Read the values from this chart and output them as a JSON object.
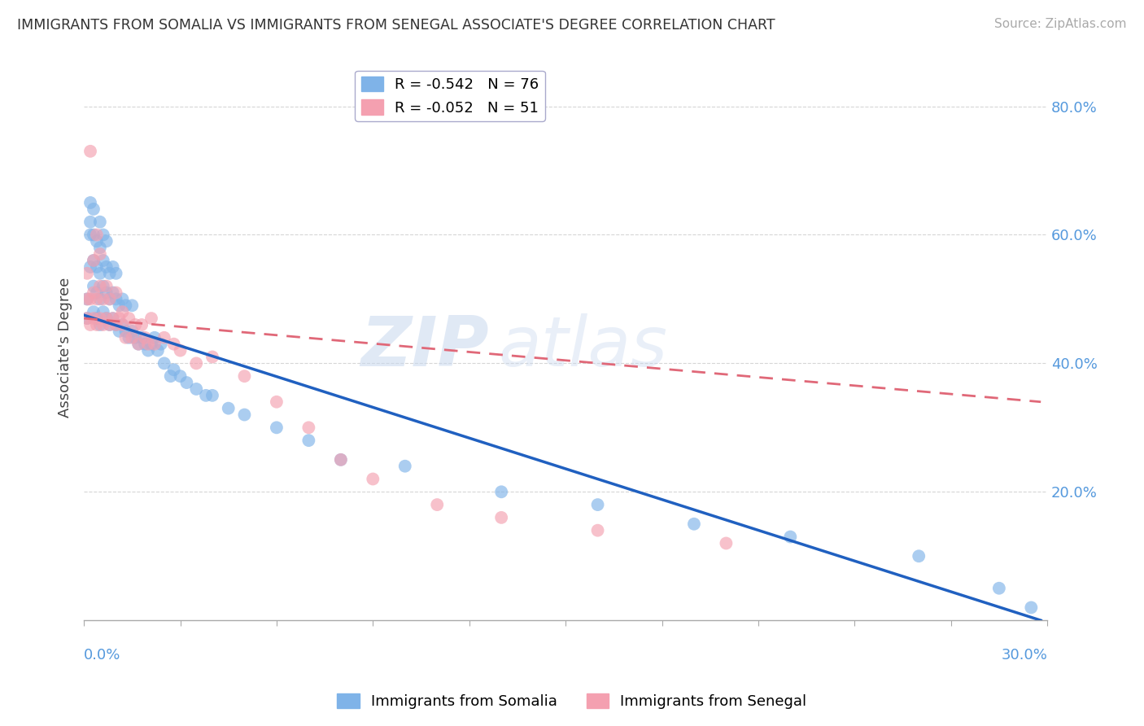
{
  "title": "IMMIGRANTS FROM SOMALIA VS IMMIGRANTS FROM SENEGAL ASSOCIATE'S DEGREE CORRELATION CHART",
  "source": "Source: ZipAtlas.com",
  "ylabel": "Associate's Degree",
  "xlim": [
    0.0,
    0.3
  ],
  "ylim": [
    0.0,
    0.85
  ],
  "ytick_vals": [
    0.2,
    0.4,
    0.6,
    0.8
  ],
  "ytick_labels": [
    "20.0%",
    "40.0%",
    "60.0%",
    "80.0%"
  ],
  "legend_somalia": "R = -0.542   N = 76",
  "legend_senegal": "R = -0.052   N = 51",
  "color_somalia": "#7fb3e8",
  "color_senegal": "#f4a0b0",
  "trendline_somalia_color": "#2060c0",
  "trendline_senegal_color": "#e06878",
  "watermark_zip": "ZIP",
  "watermark_atlas": "atlas",
  "somalia_trendline_x": [
    0.0,
    0.298
  ],
  "somalia_trendline_y": [
    0.475,
    0.0
  ],
  "senegal_trendline_x": [
    0.0,
    0.298
  ],
  "senegal_trendline_y": [
    0.47,
    0.34
  ],
  "somalia_x": [
    0.001,
    0.001,
    0.002,
    0.002,
    0.002,
    0.002,
    0.003,
    0.003,
    0.003,
    0.003,
    0.003,
    0.004,
    0.004,
    0.004,
    0.004,
    0.005,
    0.005,
    0.005,
    0.005,
    0.005,
    0.006,
    0.006,
    0.006,
    0.006,
    0.007,
    0.007,
    0.007,
    0.007,
    0.008,
    0.008,
    0.008,
    0.009,
    0.009,
    0.009,
    0.01,
    0.01,
    0.01,
    0.011,
    0.011,
    0.012,
    0.012,
    0.013,
    0.013,
    0.014,
    0.015,
    0.015,
    0.016,
    0.017,
    0.018,
    0.019,
    0.02,
    0.021,
    0.022,
    0.023,
    0.024,
    0.025,
    0.027,
    0.028,
    0.03,
    0.032,
    0.035,
    0.038,
    0.04,
    0.045,
    0.05,
    0.06,
    0.07,
    0.08,
    0.1,
    0.13,
    0.16,
    0.19,
    0.22,
    0.26,
    0.285,
    0.295
  ],
  "somalia_y": [
    0.47,
    0.5,
    0.55,
    0.6,
    0.62,
    0.65,
    0.48,
    0.52,
    0.56,
    0.6,
    0.64,
    0.47,
    0.51,
    0.55,
    0.59,
    0.46,
    0.5,
    0.54,
    0.58,
    0.62,
    0.48,
    0.52,
    0.56,
    0.6,
    0.47,
    0.51,
    0.55,
    0.59,
    0.46,
    0.5,
    0.54,
    0.47,
    0.51,
    0.55,
    0.46,
    0.5,
    0.54,
    0.45,
    0.49,
    0.46,
    0.5,
    0.45,
    0.49,
    0.44,
    0.45,
    0.49,
    0.44,
    0.43,
    0.44,
    0.43,
    0.42,
    0.43,
    0.44,
    0.42,
    0.43,
    0.4,
    0.38,
    0.39,
    0.38,
    0.37,
    0.36,
    0.35,
    0.35,
    0.33,
    0.32,
    0.3,
    0.28,
    0.25,
    0.24,
    0.2,
    0.18,
    0.15,
    0.13,
    0.1,
    0.05,
    0.02
  ],
  "senegal_x": [
    0.001,
    0.001,
    0.001,
    0.002,
    0.002,
    0.002,
    0.003,
    0.003,
    0.003,
    0.004,
    0.004,
    0.004,
    0.005,
    0.005,
    0.005,
    0.006,
    0.006,
    0.007,
    0.007,
    0.008,
    0.008,
    0.009,
    0.01,
    0.01,
    0.011,
    0.012,
    0.012,
    0.013,
    0.014,
    0.015,
    0.016,
    0.017,
    0.018,
    0.019,
    0.02,
    0.021,
    0.022,
    0.025,
    0.028,
    0.03,
    0.035,
    0.04,
    0.05,
    0.06,
    0.07,
    0.08,
    0.09,
    0.11,
    0.13,
    0.16,
    0.2
  ],
  "senegal_y": [
    0.47,
    0.5,
    0.54,
    0.46,
    0.5,
    0.73,
    0.47,
    0.51,
    0.56,
    0.46,
    0.5,
    0.6,
    0.47,
    0.52,
    0.57,
    0.46,
    0.5,
    0.47,
    0.52,
    0.46,
    0.5,
    0.47,
    0.46,
    0.51,
    0.47,
    0.46,
    0.48,
    0.44,
    0.47,
    0.44,
    0.46,
    0.43,
    0.46,
    0.44,
    0.43,
    0.47,
    0.43,
    0.44,
    0.43,
    0.42,
    0.4,
    0.41,
    0.38,
    0.34,
    0.3,
    0.25,
    0.22,
    0.18,
    0.16,
    0.14,
    0.12
  ]
}
